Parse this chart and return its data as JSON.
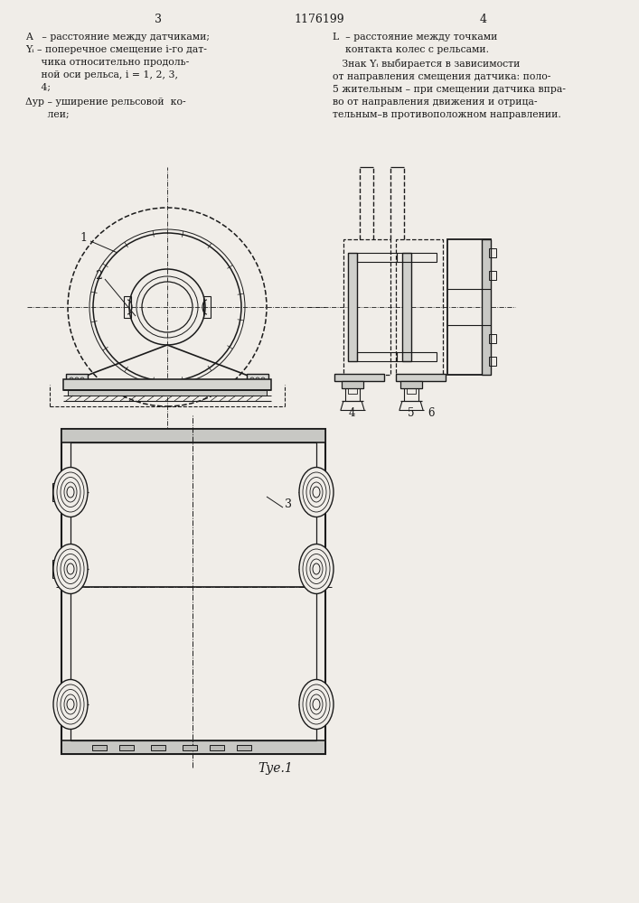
{
  "bg_color": "#f0ede8",
  "text_color": "#1a1a1a",
  "line_color": "#1a1a1a",
  "page_left": "3",
  "title_num": "1176199",
  "page_right": "4",
  "fig_label": "Τуе.1"
}
